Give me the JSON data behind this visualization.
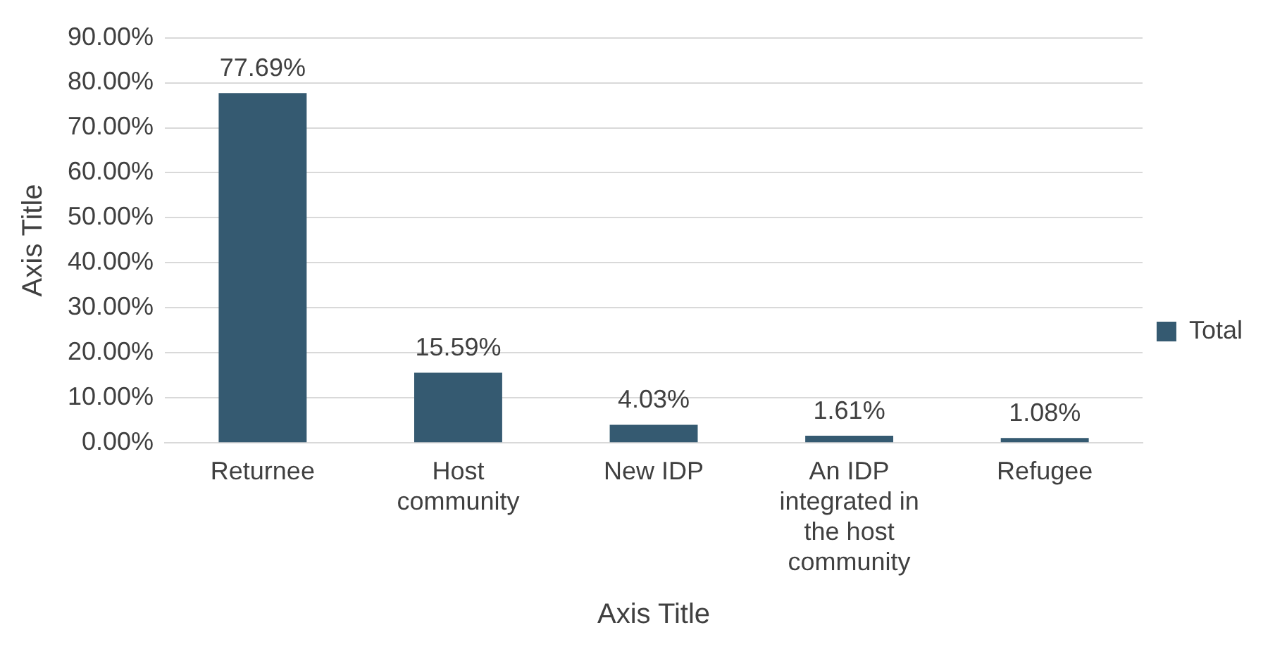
{
  "chart_data": {
    "type": "bar",
    "xlabel": "Axis Title",
    "ylabel": "Axis Title",
    "categories": [
      "Returnee",
      "Host community",
      "New IDP",
      "An IDP integrated in the host community",
      "Refugee"
    ],
    "series": [
      {
        "name": "Total",
        "color": "#355a71",
        "values": [
          77.69,
          15.59,
          4.03,
          1.61,
          1.08
        ],
        "value_labels": [
          "77.69%",
          "15.59%",
          "4.03%",
          "1.61%",
          "1.08%"
        ]
      }
    ],
    "ylim": [
      0,
      90
    ],
    "yticks": [
      {
        "value": 0,
        "label": "0.00%"
      },
      {
        "value": 10,
        "label": "10.00%"
      },
      {
        "value": 20,
        "label": "20.00%"
      },
      {
        "value": 30,
        "label": "30.00%"
      },
      {
        "value": 40,
        "label": "40.00%"
      },
      {
        "value": 50,
        "label": "50.00%"
      },
      {
        "value": 60,
        "label": "60.00%"
      },
      {
        "value": 70,
        "label": "70.00%"
      },
      {
        "value": 80,
        "label": "80.00%"
      },
      {
        "value": 90,
        "label": "90.00%"
      }
    ],
    "grid": "y",
    "legend": "right"
  }
}
